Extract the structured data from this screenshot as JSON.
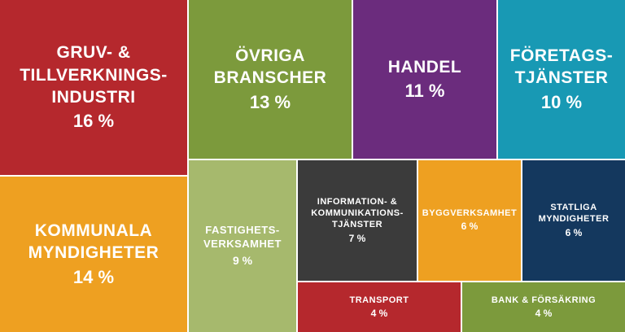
{
  "chart_data": {
    "type": "treemap",
    "unit": "%",
    "items": [
      {
        "label": "GRUV- &\nTILLVERKNINGS-\nINDUSTRI",
        "value": 16,
        "value_text": "16 %",
        "color": "#b5282d"
      },
      {
        "label": "ÖVRIGA\nBRANSCHER",
        "value": 13,
        "value_text": "13 %",
        "color": "#7c9a3c"
      },
      {
        "label": "HANDEL",
        "value": 11,
        "value_text": "11 %",
        "color": "#6b2c7d"
      },
      {
        "label": "FÖRETAGS-\nTJÄNSTER",
        "value": 10,
        "value_text": "10 %",
        "color": "#1899b4"
      },
      {
        "label": "KOMMUNALA\nMYNDIGHETER",
        "value": 14,
        "value_text": "14 %",
        "color": "#eea021"
      },
      {
        "label": "FASTIGHETS-\nVERKSAMHET",
        "value": 9,
        "value_text": "9 %",
        "color": "#a6b96d"
      },
      {
        "label": "INFORMATION- &\nKOMMUNIKATIONS-\nTJÄNSTER",
        "value": 7,
        "value_text": "7 %",
        "color": "#3b3b3b"
      },
      {
        "label": "BYGGVERKSAMHET",
        "value": 6,
        "value_text": "6 %",
        "color": "#eea021"
      },
      {
        "label": "STATLIGA\nMYNDIGHETER",
        "value": 6,
        "value_text": "6 %",
        "color": "#14385e"
      },
      {
        "label": "TRANSPORT",
        "value": 4,
        "value_text": "4 %",
        "color": "#b5282d"
      },
      {
        "label": "BANK & FÖRSÄKRING",
        "value": 4,
        "value_text": "4 %",
        "color": "#7c9a3c"
      }
    ]
  }
}
